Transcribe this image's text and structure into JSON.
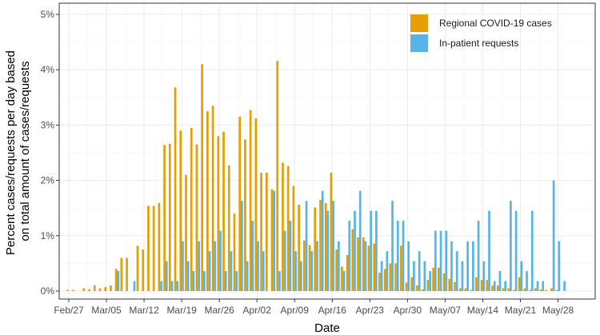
{
  "chart_data": {
    "type": "bar",
    "title": "",
    "xlabel": "Date",
    "ylabel_lines": [
      "Percent cases/requests per day based",
      "on total amount of cases/requests"
    ],
    "ylim": [
      0,
      5
    ],
    "y_unit": "%",
    "y_ticks": [
      0,
      1,
      2,
      3,
      4,
      5
    ],
    "y_tick_labels": [
      "0%",
      "1%",
      "2%",
      "3%",
      "4%",
      "5%"
    ],
    "x_ticks": [
      "Feb/27",
      "Mar/05",
      "Mar/12",
      "Mar/19",
      "Mar/26",
      "Apr/02",
      "Apr/09",
      "Apr/16",
      "Apr/23",
      "Apr/30",
      "May/07",
      "May/14",
      "May/21",
      "May/28"
    ],
    "x_start_date": "2020-02-27",
    "grid": true,
    "legend_position": "top-right",
    "series": [
      {
        "name": "Regional COVID-19 cases",
        "color": "#E69F00",
        "values": [
          0.02,
          0.02,
          0,
          0.05,
          0.03,
          0.1,
          0.05,
          0.07,
          0.1,
          0.4,
          0.6,
          0.6,
          0,
          0.82,
          0.75,
          1.54,
          1.54,
          1.59,
          2.64,
          2.66,
          3.68,
          2.9,
          2.1,
          2.95,
          2.65,
          4.1,
          3.25,
          3.35,
          2.8,
          2.88,
          2.27,
          1.4,
          3.15,
          2.74,
          3.27,
          3.12,
          2.14,
          2.14,
          1.84,
          4.16,
          2.32,
          2.26,
          1.9,
          1.56,
          0.91,
          0.83,
          1.51,
          1.65,
          1.59,
          2.14,
          0.75,
          0.44,
          0.65,
          1.12,
          0.97,
          0.97,
          0.82,
          0.86,
          0.33,
          0.4,
          0.5,
          0.5,
          0.82,
          0.15,
          0.25,
          0.1,
          0.03,
          0.2,
          0.42,
          0.42,
          0.32,
          0.22,
          0.16,
          0.05,
          0.05,
          0.02,
          0.25,
          0.2,
          0.2,
          0.1,
          0.1,
          0.05,
          0.05,
          0.02,
          0.25,
          0.05,
          0.02,
          0.05,
          0.03,
          0.02,
          0.05,
          0.02
        ]
      },
      {
        "name": "In-patient requests",
        "color": "#56B4E9",
        "values": [
          0,
          0,
          0,
          0,
          0,
          0,
          0,
          0,
          0,
          0.36,
          0,
          0,
          0.18,
          0,
          0,
          0,
          0,
          0.18,
          0.54,
          0.18,
          0.18,
          0.9,
          0.54,
          0.36,
          0.9,
          0.36,
          0.72,
          0.9,
          1.09,
          0.36,
          0.72,
          0.36,
          1.63,
          0.54,
          1.27,
          0.9,
          0.72,
          0,
          1.81,
          0.36,
          1.09,
          1.27,
          0.72,
          0.54,
          1.63,
          0.72,
          0.9,
          1.81,
          1.45,
          1.63,
          0.9,
          0.36,
          1.27,
          1.45,
          1.81,
          0.9,
          1.45,
          1.45,
          0.54,
          0.72,
          1.63,
          1.27,
          1.27,
          0.9,
          0.54,
          0.72,
          0.54,
          0.36,
          1.09,
          1.09,
          1.09,
          0.9,
          0.72,
          0.54,
          0.9,
          0.9,
          1.27,
          0.54,
          1.45,
          0.18,
          0.36,
          0.18,
          1.63,
          1.45,
          0.54,
          0.36,
          1.45,
          0.18,
          0.18,
          0,
          2.0,
          0.9,
          0.18
        ]
      }
    ]
  }
}
